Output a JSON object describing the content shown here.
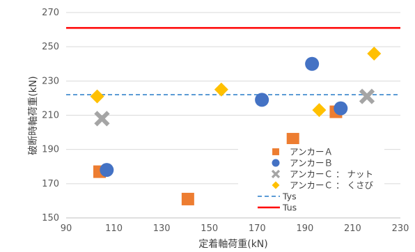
{
  "chart_data": {
    "type": "scatter",
    "xlabel": "定着軸荷重(kN)",
    "ylabel": "破断時軸荷重(kN)",
    "xlim": [
      90,
      230
    ],
    "ylim": [
      150,
      270
    ],
    "xticks": [
      90,
      110,
      130,
      150,
      170,
      190,
      210,
      230
    ],
    "yticks": [
      150,
      170,
      190,
      210,
      230,
      250,
      270
    ],
    "grid": "horizontal",
    "legend_position": "bottom-right",
    "series": [
      {
        "name": "アンカーＡ",
        "marker": "square",
        "color": "#ED7D31",
        "points": [
          [
            104,
            177
          ],
          [
            141,
            161
          ],
          [
            185,
            196
          ],
          [
            203,
            212
          ]
        ]
      },
      {
        "name": "アンカーＢ",
        "marker": "circle",
        "color": "#4472C4",
        "points": [
          [
            107,
            178
          ],
          [
            172,
            219
          ],
          [
            193,
            240
          ],
          [
            205,
            214
          ]
        ]
      },
      {
        "name": "アンカーＣ ： ナット",
        "marker": "x",
        "color": "#A5A5A5",
        "points": [
          [
            105,
            208
          ],
          [
            216,
            221
          ]
        ]
      },
      {
        "name": "アンカーＣ ： くさび",
        "marker": "diamond",
        "color": "#FFC000",
        "points": [
          [
            103,
            221
          ],
          [
            155,
            225
          ],
          [
            196,
            213
          ],
          [
            219,
            246
          ]
        ]
      }
    ],
    "reference_lines": [
      {
        "name": "Tys",
        "y": 222,
        "color": "#5B9BD5",
        "style": "dashed"
      },
      {
        "name": "Tus",
        "y": 261,
        "color": "#FF0000",
        "style": "solid"
      }
    ]
  }
}
